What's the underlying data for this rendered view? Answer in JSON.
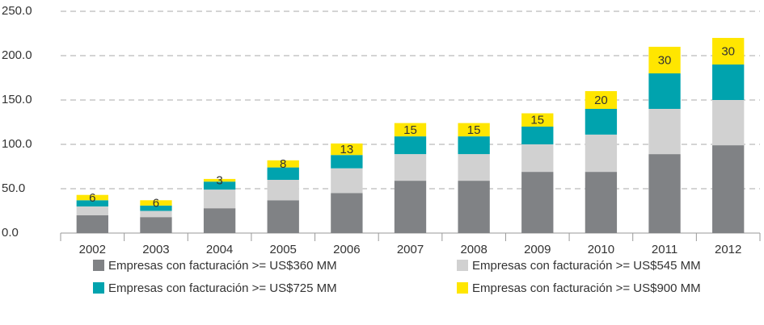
{
  "chart_data": {
    "type": "stacked_bar",
    "categories": [
      "2002",
      "2003",
      "2004",
      "2005",
      "2006",
      "2007",
      "2008",
      "2009",
      "2010",
      "2011",
      "2012"
    ],
    "series": [
      {
        "name": "Empresas con facturación >= US$360 MM",
        "color": "#808285",
        "values": [
          20,
          18,
          28,
          37,
          45,
          59,
          59,
          69,
          69,
          89,
          99
        ]
      },
      {
        "name": "Empresas con facturación >= US$545 MM",
        "color": "#d1d1d1",
        "values": [
          10,
          7,
          21,
          23,
          28,
          30,
          30,
          31,
          42,
          51,
          51
        ]
      },
      {
        "name": "Empresas con facturación >= US$725 MM",
        "color": "#00a3ae",
        "values": [
          7,
          6,
          9,
          14,
          15,
          20,
          20,
          20,
          29,
          40,
          40
        ]
      },
      {
        "name": "Empresas con facturación >= US$900 MM",
        "color": "#ffe600",
        "values": [
          6,
          6,
          3,
          8,
          13,
          15,
          15,
          15,
          20,
          30,
          30
        ],
        "data_labels": true
      }
    ],
    "ylim": [
      0,
      250
    ],
    "yticks": [
      {
        "value": 0,
        "label": "0.0"
      },
      {
        "value": 50,
        "label": "50.0"
      },
      {
        "value": 100,
        "label": "100.0"
      },
      {
        "value": 150,
        "label": "150.0"
      },
      {
        "value": 200,
        "label": "200.0"
      },
      {
        "value": 250,
        "label": "250.0"
      }
    ],
    "grid": true,
    "legend": "bottom"
  }
}
